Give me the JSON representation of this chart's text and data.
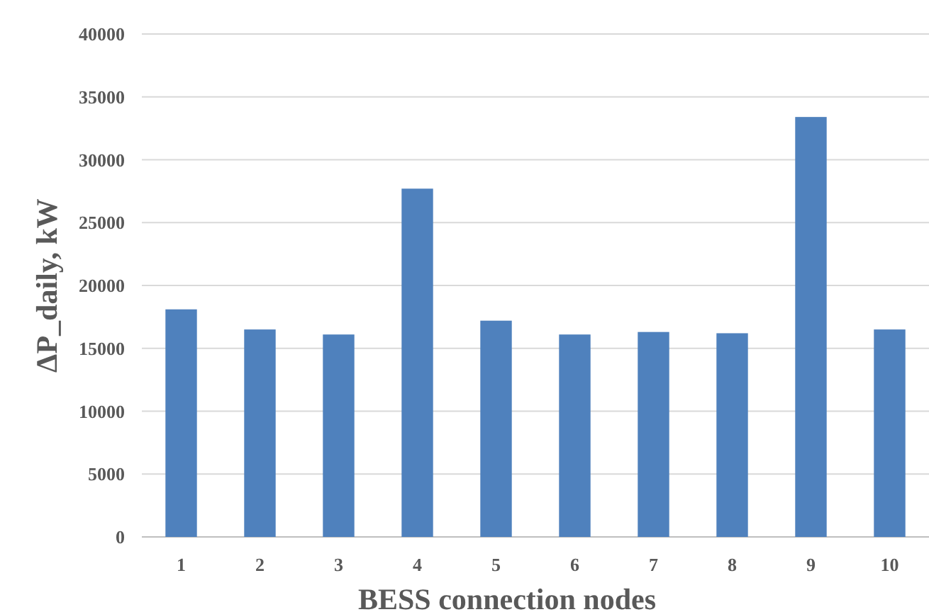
{
  "chart_data": {
    "type": "bar",
    "xlabel": "BESS connection nodes",
    "ylabel": "ΔP_daily, kW",
    "categories": [
      "1",
      "2",
      "3",
      "4",
      "5",
      "6",
      "7",
      "8",
      "9",
      "10"
    ],
    "values": [
      18100,
      16500,
      16100,
      27700,
      17200,
      16100,
      16300,
      16200,
      33400,
      16500
    ],
    "color": "#4f81bd",
    "ylim": [
      0,
      40000
    ],
    "yticks": [
      0,
      5000,
      10000,
      15000,
      20000,
      25000,
      30000,
      35000,
      40000
    ],
    "grid": "y"
  }
}
